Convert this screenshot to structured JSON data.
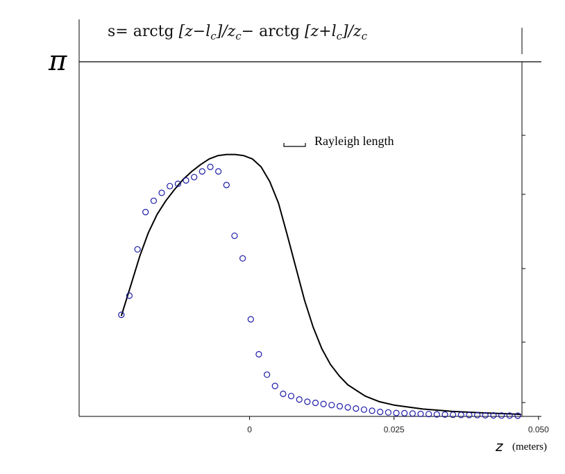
{
  "chart_data": {
    "type": "line",
    "title": "s= arctg [z−l_c]/z_c− arctg [z+l_c]/z_c",
    "title_parts": {
      "lead": "s= ",
      "fn1": "arctg",
      "arg1": " [z−l",
      "sub1": "c",
      "mid1": "]/z",
      "sub2": "c",
      "minus": "− ",
      "fn2": "arctg",
      "arg2": " [z+l",
      "sub3": "c",
      "mid2": "]/z",
      "sub4": "c"
    },
    "y_top_label": "π",
    "xlabel": "z",
    "xlabel_unit": "(meters)",
    "xlim": [
      -0.0295,
      0.0505
    ],
    "ylim": [
      0,
      3.14159
    ],
    "x_ticks": [
      {
        "value": 0,
        "label": "0"
      },
      {
        "value": 0.025,
        "label": "0.025"
      },
      {
        "value": 0.05,
        "label": "0.050"
      }
    ],
    "legend": {
      "label": "Rayleigh length",
      "placement": "top-right"
    },
    "grid": false,
    "series": [
      {
        "kind": "line",
        "color": "#000000",
        "x": [
          -0.0222,
          -0.0205,
          -0.019,
          -0.0175,
          -0.016,
          -0.0145,
          -0.013,
          -0.0115,
          -0.01,
          -0.0085,
          -0.007,
          -0.0055,
          -0.004,
          -0.0025,
          -0.001,
          0.0005,
          0.002,
          0.0035,
          0.005,
          0.0065,
          0.008,
          0.0095,
          0.011,
          0.0125,
          0.014,
          0.0155,
          0.017,
          0.0185,
          0.02,
          0.0225,
          0.025,
          0.03,
          0.035,
          0.04,
          0.045,
          0.047
        ],
        "y": [
          0.89,
          1.17,
          1.42,
          1.63,
          1.79,
          1.91,
          2.01,
          2.1,
          2.17,
          2.23,
          2.28,
          2.31,
          2.32,
          2.32,
          2.31,
          2.28,
          2.21,
          2.08,
          1.89,
          1.61,
          1.32,
          1.03,
          0.79,
          0.6,
          0.46,
          0.36,
          0.28,
          0.23,
          0.18,
          0.13,
          0.1,
          0.065,
          0.045,
          0.032,
          0.022,
          0.018
        ]
      },
      {
        "kind": "scatter",
        "marker": "open-circle",
        "color": "#1a1aa6",
        "x": [
          -0.0222,
          -0.0208,
          -0.0194,
          -0.018,
          -0.0166,
          -0.0152,
          -0.0138,
          -0.0124,
          -0.011,
          -0.0096,
          -0.0082,
          -0.0068,
          -0.0054,
          -0.004,
          -0.0026,
          -0.0012,
          0.0002,
          0.0016,
          0.003,
          0.0044,
          0.0058,
          0.0072,
          0.0086,
          0.01,
          0.0114,
          0.0128,
          0.0142,
          0.0156,
          0.017,
          0.0184,
          0.0198,
          0.0212,
          0.0226,
          0.024,
          0.0254,
          0.0268,
          0.0282,
          0.0296,
          0.031,
          0.0324,
          0.0338,
          0.0352,
          0.0366,
          0.038,
          0.0394,
          0.0408,
          0.0422,
          0.0436,
          0.045,
          0.0464
        ],
        "y": [
          0.9,
          1.07,
          1.48,
          1.81,
          1.91,
          1.98,
          2.04,
          2.06,
          2.09,
          2.12,
          2.17,
          2.21,
          2.17,
          2.05,
          1.6,
          1.4,
          0.86,
          0.55,
          0.37,
          0.27,
          0.2,
          0.18,
          0.15,
          0.13,
          0.12,
          0.11,
          0.1,
          0.09,
          0.08,
          0.07,
          0.06,
          0.05,
          0.04,
          0.035,
          0.03,
          0.028,
          0.025,
          0.022,
          0.02,
          0.018,
          0.016,
          0.014,
          0.013,
          0.012,
          0.011,
          0.01,
          0.009,
          0.008,
          0.007,
          0.006
        ]
      }
    ]
  }
}
